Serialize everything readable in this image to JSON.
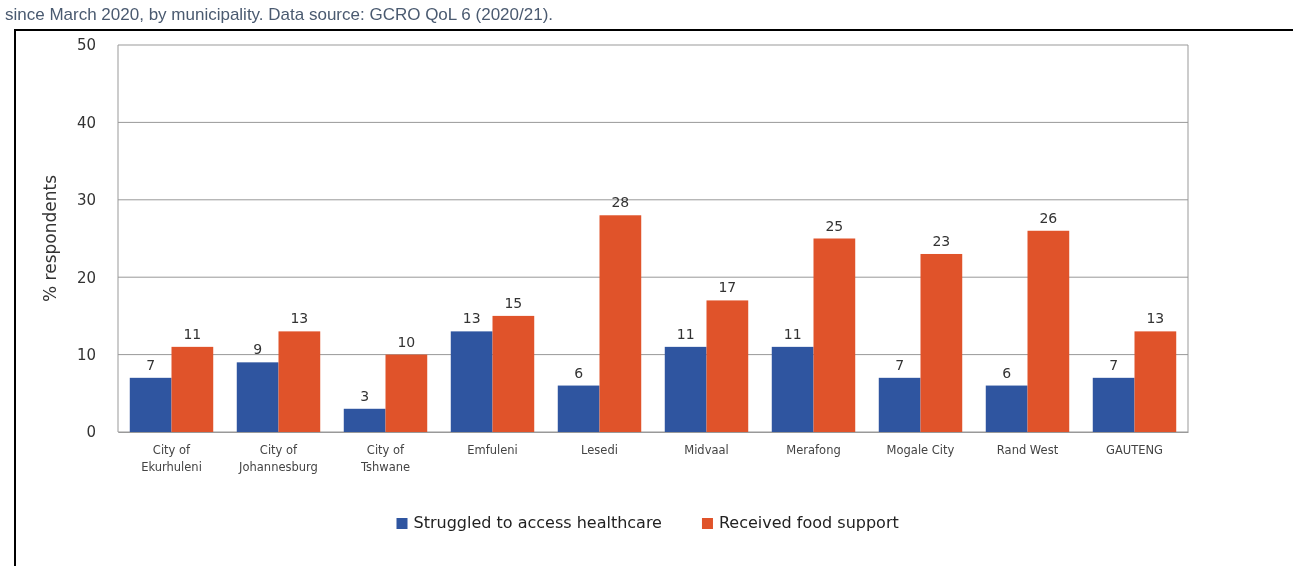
{
  "chart_data": {
    "type": "bar",
    "ylabel": "% respondents",
    "annotations": [
      "since March 2020, by municipality. Data source: GCRO QoL 6 (2020/21)."
    ],
    "categories": [
      "City of\nEkurhuleni",
      "City of\nJohannesburg",
      "City of\nTshwane",
      "Emfuleni",
      "Lesedi",
      "Midvaal",
      "Merafong",
      "Mogale City",
      "Rand West",
      "GAUTENG"
    ],
    "series": [
      {
        "name": "Struggled to access healthcare",
        "color": "#2f55a0",
        "values": [
          7,
          9,
          3,
          13,
          6,
          11,
          11,
          7,
          6,
          7
        ]
      },
      {
        "name": "Received food support",
        "color": "#e0532a",
        "values": [
          11,
          13,
          10,
          15,
          28,
          17,
          25,
          23,
          26,
          13
        ]
      }
    ],
    "ylim": [
      0,
      50
    ],
    "yticks": [
      0,
      10,
      20,
      30,
      40,
      50
    ],
    "grid": "y",
    "legend": "bottom",
    "data_labels": true
  }
}
